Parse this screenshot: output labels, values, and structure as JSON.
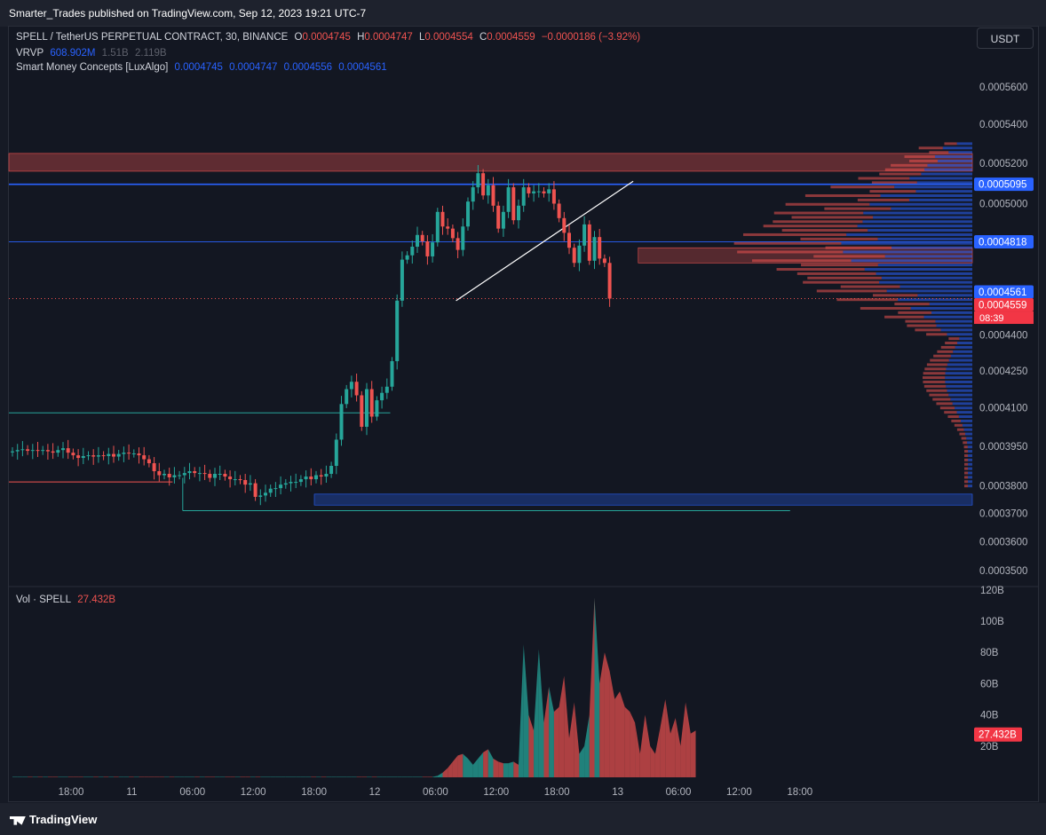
{
  "publisher": "Smarter_Trades published on TradingView.com, Sep 12, 2023 19:21 UTC-7",
  "currency_button": "USDT",
  "legend": {
    "symbol": "SPELL / TetherUS PERPETUAL CONTRACT, 30, BINANCE",
    "o_label": "O",
    "o_value": "0.0004745",
    "h_label": "H",
    "h_value": "0.0004747",
    "l_label": "L",
    "l_value": "0.0004554",
    "c_label": "C",
    "c_value": "0.0004559",
    "change": "−0.0000186 (−3.92%)",
    "vrvp_label": "VRVP",
    "vrvp_v1": "608.902M",
    "vrvp_v2": "1.51B",
    "vrvp_v3": "2.119B",
    "smc_label": "Smart Money Concepts [LuxAlgo]",
    "smc_v1": "0.0004745",
    "smc_v2": "0.0004747",
    "smc_v3": "0.0004556",
    "smc_v4": "0.0004561",
    "vol_label": "Vol · SPELL",
    "vol_value": "27.432B"
  },
  "colors": {
    "up": "#26a69a",
    "down": "#ef5350",
    "blue": "#2962ff",
    "bg": "#131722",
    "grid": "#1e222d"
  },
  "price_labels": [
    {
      "text": "0.0005095",
      "price": 0.0005095,
      "color": "#2962ff"
    },
    {
      "text": "0.0004818",
      "price": 0.0004818,
      "color": "#2962ff"
    },
    {
      "text": "0.0004561",
      "price": 0.0004561,
      "color": "#2962ff"
    },
    {
      "text": "0.0004559",
      "price": 0.0004559,
      "color": "#f23645"
    }
  ],
  "countdown": "08:39",
  "chart_data": {
    "type": "candlestick",
    "interval": "30",
    "y_axis": {
      "ticks": [
        {
          "label": "0.0005600",
          "price": 0.00056
        },
        {
          "label": "0.0005400",
          "price": 0.00054
        },
        {
          "label": "0.0005200",
          "price": 0.00052
        },
        {
          "label": "0.0005000",
          "price": 0.0005
        },
        {
          "label": "0.0004400",
          "price": 0.00044
        },
        {
          "label": "0.0004250",
          "price": 0.000425
        },
        {
          "label": "0.0004100",
          "price": 0.00041
        },
        {
          "label": "0.0003950",
          "price": 0.000395
        },
        {
          "label": "0.0003800",
          "price": 0.00038
        },
        {
          "label": "0.0003700",
          "price": 0.00037
        },
        {
          "label": "0.0003600",
          "price": 0.00036
        },
        {
          "label": "0.0003500",
          "price": 0.00035
        }
      ],
      "log_scale": true
    },
    "x_axis": {
      "ticks": [
        {
          "label": "18:00",
          "bar": 0
        },
        {
          "label": "11",
          "bar": 12
        },
        {
          "label": "06:00",
          "bar": 24
        },
        {
          "label": "12:00",
          "bar": 36
        },
        {
          "label": "18:00",
          "bar": 48
        },
        {
          "label": "12",
          "bar": 60
        },
        {
          "label": "06:00",
          "bar": 72
        },
        {
          "label": "12:00",
          "bar": 84
        },
        {
          "label": "18:00",
          "bar": 96
        },
        {
          "label": "13",
          "bar": 108
        },
        {
          "label": "06:00",
          "bar": 120
        },
        {
          "label": "12:00",
          "bar": 132
        },
        {
          "label": "18:00",
          "bar": 144
        }
      ]
    },
    "close": [
      0.000393,
      0.0003935,
      0.0003938,
      0.0003932,
      0.0003935,
      0.0003932,
      0.0003935,
      0.000393,
      0.0003925,
      0.0003935,
      0.0003942,
      0.0003925,
      0.0003915,
      0.0003905,
      0.0003912,
      0.0003915,
      0.000391,
      0.0003915,
      0.0003912,
      0.000392,
      0.000391,
      0.000392,
      0.0003925,
      0.0003922,
      0.0003922,
      0.0003915,
      0.00039,
      0.0003885,
      0.0003855,
      0.000384,
      0.0003845,
      0.0003832,
      0.000384,
      0.000384,
      0.0003848,
      0.0003855,
      0.0003848,
      0.0003848,
      0.0003845,
      0.000383,
      0.0003845,
      0.0003845,
      0.0003835,
      0.0003825,
      0.0003825,
      0.0003822,
      0.0003805,
      0.000381,
      0.000376,
      0.0003765,
      0.0003775,
      0.000379,
      0.0003792,
      0.0003805,
      0.000381,
      0.0003815,
      0.0003815,
      0.0003825,
      0.0003835,
      0.0003825,
      0.000384,
      0.0003835,
      0.0003845,
      0.0003875,
      0.0003975,
      0.0004115,
      0.0004175,
      0.0004205,
      0.000415,
      0.0004025,
      0.0004175,
      0.0004065,
      0.000413,
      0.000416,
      0.0004185,
      0.000429,
      0.000455,
      0.0004735,
      0.0004755,
      0.0004795,
      0.000485,
      0.000482,
      0.000475,
      0.0004815,
      0.000496,
      0.000489,
      0.000488,
      0.0004835,
      0.000478,
      0.000489,
      0.000501,
      0.000508,
      0.000515,
      0.000504,
      0.000509,
      0.000499,
      0.000488,
      0.000496,
      0.000508,
      0.000492,
      0.000499,
      0.000508,
      0.000505,
      0.000506,
      0.000506,
      0.000505,
      0.000507,
      0.0005,
      0.000493,
      0.000486,
      0.000479,
      0.000472,
      0.00048,
      0.00049,
      0.000473,
      0.000484,
      0.000474,
      0.000472,
      0.0004559
    ],
    "volume_area": [
      0.3,
      0.3,
      0.3,
      0.3,
      0.3,
      0.3,
      0.3,
      0.3,
      0.3,
      0.3,
      0.3,
      0.3,
      0.3,
      0.3,
      0.3,
      0.3,
      0.3,
      0.3,
      0.3,
      0.3,
      0.3,
      0.3,
      0.3,
      0.3,
      0.3,
      0.3,
      0.3,
      0.3,
      0.3,
      0.3,
      0.3,
      0.3,
      0.3,
      0.3,
      0.3,
      0.3,
      0.3,
      0.3,
      0.3,
      0.3,
      0.3,
      0.3,
      0.3,
      0.3,
      0.3,
      0.3,
      0.3,
      0.3,
      0.3,
      0.3,
      0.3,
      0.3,
      0.3,
      0.3,
      0.3,
      0.3,
      0.3,
      0.3,
      0.3,
      0.3,
      0.3,
      0.3,
      0.3,
      0.3,
      0.3,
      0.3,
      0.3,
      0.3,
      0.3,
      0.3,
      0.3,
      0.3,
      0.3,
      0.3,
      0.3,
      0.3,
      0.3,
      0.3,
      0.3,
      0.3,
      0.3,
      0.3,
      0.3,
      0.3,
      1,
      3,
      6,
      10,
      14,
      15,
      12,
      8,
      12,
      16,
      18,
      12,
      10,
      9,
      9,
      10,
      8,
      85,
      40,
      30,
      82,
      35,
      58,
      42,
      45,
      65,
      25,
      48,
      15,
      20,
      40,
      115,
      60,
      80,
      68,
      50,
      55,
      45,
      42,
      35,
      15,
      40,
      20,
      15,
      32,
      50,
      28,
      38,
      20,
      48,
      28,
      30
    ],
    "volume_axis": [
      {
        "label": "120B",
        "value": 120
      },
      {
        "label": "100B",
        "value": 100
      },
      {
        "label": "80B",
        "value": 80
      },
      {
        "label": "60B",
        "value": 60
      },
      {
        "label": "40B",
        "value": 40
      },
      {
        "label": "20B",
        "value": 20
      }
    ],
    "volume_last": 27.432,
    "levels": [
      {
        "price": 0.0005095,
        "kind": "solid-blue"
      },
      {
        "price": 0.0004818,
        "kind": "solid-blue-thin"
      },
      {
        "price": 0.0004559,
        "kind": "dotted-red"
      }
    ],
    "zones": [
      {
        "top": 0.000525,
        "bottom": 0.000516,
        "kind": "supply"
      },
      {
        "top": 0.000479,
        "bottom": 0.000472,
        "kind": "supply-small"
      },
      {
        "top": 0.000377,
        "bottom": 0.000373,
        "kind": "demand"
      }
    ]
  }
}
